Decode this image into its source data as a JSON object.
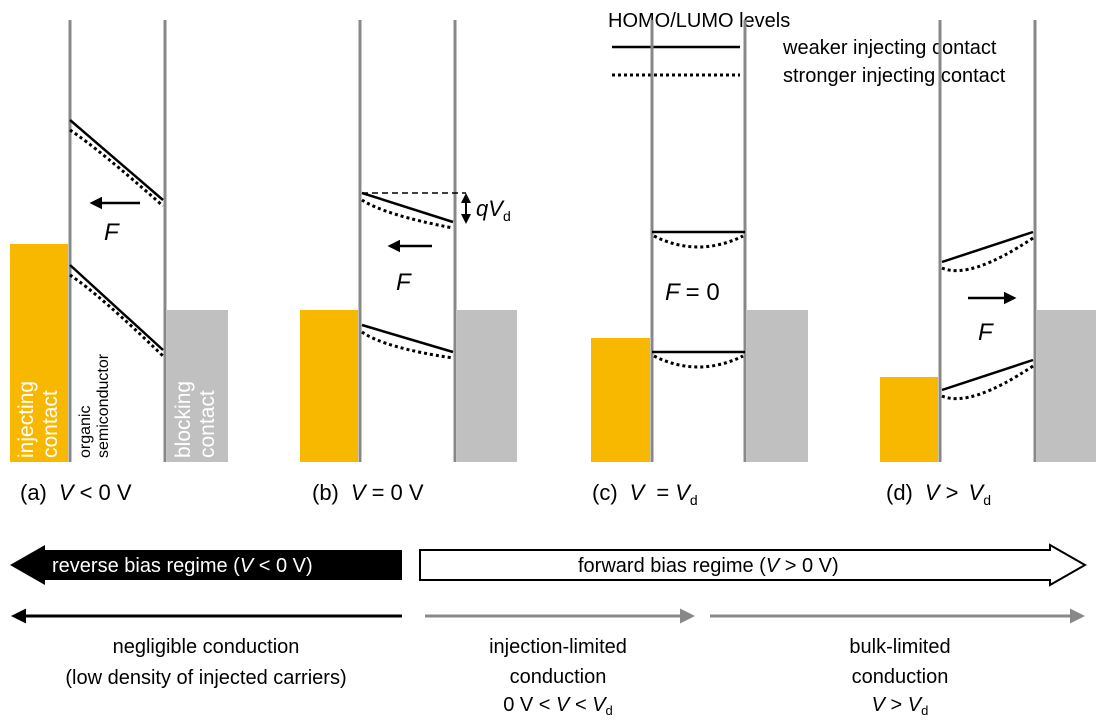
{
  "legend": {
    "title": "HOMO/LUMO levels",
    "items": [
      "weaker injecting contact",
      "stronger injecting contact"
    ]
  },
  "panels": [
    {
      "label": "(a)",
      "condition": [
        "V",
        "< 0 V"
      ],
      "field": "F"
    },
    {
      "label": "(b)",
      "condition": [
        "V",
        "= 0 V"
      ],
      "field": "F",
      "offset": [
        "q",
        "V",
        "d"
      ]
    },
    {
      "label": "(c)",
      "condition": [
        "V",
        "=",
        "V",
        "d"
      ],
      "field": [
        "F",
        "= 0"
      ]
    },
    {
      "label": "(d)",
      "condition": [
        "V",
        "> ",
        "V",
        "d"
      ],
      "field": "F"
    }
  ],
  "layers": {
    "injecting": [
      "injecting",
      "contact"
    ],
    "organic": [
      "organic",
      "semiconductor"
    ],
    "blocking": [
      "blocking",
      "contact"
    ]
  },
  "regimes": {
    "reverse": [
      "reverse bias regime (",
      "V",
      " < 0 V)"
    ],
    "forward": [
      "forward bias regime (",
      "V",
      " > 0 V)"
    ]
  },
  "conduction": [
    {
      "lines": [
        "negligible conduction",
        "(low density of injected carriers)"
      ]
    },
    {
      "lines": [
        "injection-limited",
        "conduction"
      ],
      "range": [
        "0 V < ",
        "V",
        " < ",
        "V",
        "d"
      ]
    },
    {
      "lines": [
        "bulk-limited",
        "conduction"
      ],
      "range": [
        "V",
        " > ",
        "V",
        "d"
      ]
    }
  ]
}
